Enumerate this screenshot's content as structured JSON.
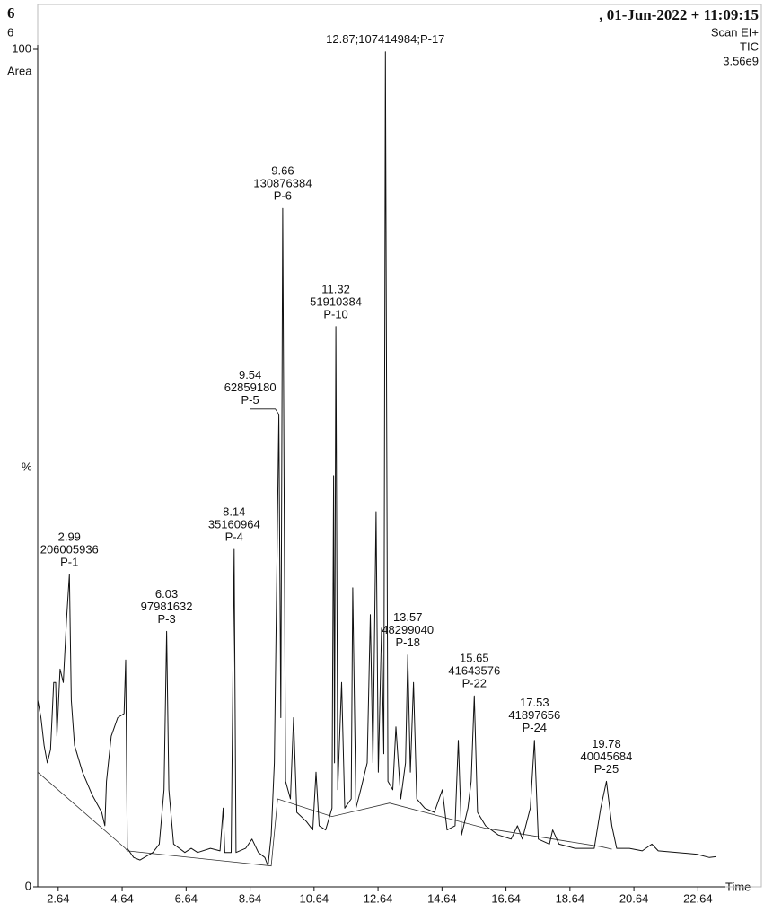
{
  "chart_data": {
    "type": "line",
    "header": {
      "left_title": "6",
      "left_sub": "6",
      "right_title": ",  01-Jun-2022 + 11:09:15",
      "scan": "Scan EI+",
      "mode": "TIC",
      "scale": "3.56e9"
    },
    "y_label_top": "Area",
    "y_label": "%",
    "x_label": "Time",
    "xlim": [
      2.0,
      23.5
    ],
    "xticks": [
      2.64,
      4.64,
      6.64,
      8.64,
      10.64,
      12.64,
      14.64,
      16.64,
      18.64,
      20.64,
      22.64
    ],
    "ylim": [
      0,
      100
    ],
    "yticks": [
      0,
      100
    ],
    "color": "#111111",
    "x": [
      2.0,
      2.1,
      2.2,
      2.3,
      2.4,
      2.5,
      2.56,
      2.6,
      2.7,
      2.8,
      2.9,
      2.99,
      3.05,
      3.15,
      3.4,
      3.7,
      4.0,
      4.1,
      4.15,
      4.3,
      4.5,
      4.7,
      4.75,
      4.8,
      5.0,
      5.2,
      5.6,
      5.8,
      5.95,
      6.03,
      6.1,
      6.25,
      6.6,
      6.8,
      7.0,
      7.4,
      7.7,
      7.8,
      7.85,
      8.05,
      8.14,
      8.2,
      8.5,
      8.7,
      8.9,
      9.1,
      9.2,
      9.3,
      9.4,
      9.54,
      9.6,
      9.66,
      9.75,
      9.9,
      10.0,
      10.1,
      10.4,
      10.6,
      10.7,
      10.8,
      11.0,
      11.2,
      11.25,
      11.28,
      11.32,
      11.38,
      11.5,
      11.6,
      11.8,
      11.85,
      11.95,
      12.1,
      12.3,
      12.4,
      12.48,
      12.58,
      12.65,
      12.75,
      12.82,
      12.87,
      12.95,
      13.1,
      13.2,
      13.35,
      13.5,
      13.57,
      13.65,
      13.75,
      13.85,
      14.1,
      14.4,
      14.65,
      14.8,
      15.05,
      15.15,
      15.25,
      15.45,
      15.55,
      15.65,
      15.75,
      16.0,
      16.4,
      16.8,
      17.0,
      17.15,
      17.4,
      17.53,
      17.65,
      18.0,
      18.1,
      18.3,
      18.8,
      19.4,
      19.6,
      19.78,
      19.95,
      20.1,
      20.5,
      20.9,
      21.2,
      21.4,
      22.0,
      22.6,
      23.0,
      23.2
    ],
    "values": [
      22.3,
      20.2,
      16.9,
      14.8,
      16.4,
      24.4,
      24.4,
      18.0,
      26.0,
      24.4,
      31.9,
      37.3,
      22.3,
      16.9,
      13.7,
      11.0,
      8.9,
      7.3,
      12.6,
      18.0,
      20.2,
      20.7,
      27.1,
      4.6,
      3.5,
      3.2,
      4.1,
      5.1,
      11.6,
      30.5,
      11.6,
      5.1,
      4.1,
      4.6,
      4.1,
      4.6,
      4.3,
      9.4,
      4.1,
      4.1,
      40.3,
      4.1,
      4.6,
      5.7,
      4.1,
      3.5,
      2.5,
      6.2,
      14.8,
      56.4,
      20.2,
      81.0,
      12.6,
      10.5,
      20.2,
      8.9,
      7.8,
      6.8,
      13.7,
      7.3,
      6.8,
      9.4,
      49.1,
      14.8,
      66.9,
      11.6,
      24.4,
      9.4,
      10.5,
      35.7,
      9.4,
      11.6,
      14.8,
      32.5,
      14.8,
      44.8,
      13.7,
      30.9,
      15.9,
      99.7,
      12.6,
      11.6,
      19.1,
      10.5,
      14.8,
      27.7,
      13.7,
      24.4,
      10.5,
      9.4,
      8.9,
      11.6,
      6.8,
      7.3,
      17.5,
      6.2,
      9.4,
      12.6,
      22.8,
      8.9,
      7.3,
      6.2,
      5.7,
      7.3,
      5.7,
      9.4,
      17.5,
      5.7,
      5.1,
      6.8,
      5.1,
      4.6,
      4.6,
      9.4,
      12.6,
      7.3,
      4.6,
      4.6,
      4.3,
      5.1,
      4.3,
      4.1,
      3.9,
      3.5,
      3.6
    ],
    "baseline": {
      "x": [
        2.0,
        4.74,
        4.8,
        9.3,
        9.5,
        11.2,
        13.0,
        16.0,
        19.6,
        19.95
      ],
      "values": [
        13.7,
        4.6,
        4.3,
        2.5,
        10.5,
        8.4,
        10.0,
        7.0,
        4.8,
        4.5
      ]
    },
    "peaks": [
      {
        "x": 2.99,
        "value": 37.3,
        "lines": [
          "2.99",
          "206005936",
          "P-1"
        ]
      },
      {
        "x": 6.03,
        "value": 30.5,
        "lines": [
          "6.03",
          "97981632",
          "P-3"
        ]
      },
      {
        "x": 8.14,
        "value": 40.3,
        "lines": [
          "8.14",
          "35160964",
          "P-4"
        ]
      },
      {
        "x": 9.54,
        "value": 56.4,
        "lines": [
          "9.54",
          "62859180",
          "P-5"
        ]
      },
      {
        "x": 9.66,
        "value": 81.0,
        "lines": [
          "9.66",
          "130876384",
          "P-6"
        ]
      },
      {
        "x": 11.32,
        "value": 66.9,
        "lines": [
          "11.32",
          "51910384",
          "P-10"
        ]
      },
      {
        "x": 12.87,
        "value": 99.7,
        "lines": [
          "12.87;107414984;P-17"
        ]
      },
      {
        "x": 13.57,
        "value": 27.7,
        "lines": [
          "13.57",
          "48299040",
          "P-18"
        ]
      },
      {
        "x": 15.65,
        "value": 22.8,
        "lines": [
          "15.65",
          "41643576",
          "P-22"
        ]
      },
      {
        "x": 17.53,
        "value": 17.5,
        "lines": [
          "17.53",
          "41897656",
          "P-24"
        ]
      },
      {
        "x": 19.78,
        "value": 12.6,
        "lines": [
          "19.78",
          "40045684",
          "P-25"
        ]
      }
    ]
  }
}
